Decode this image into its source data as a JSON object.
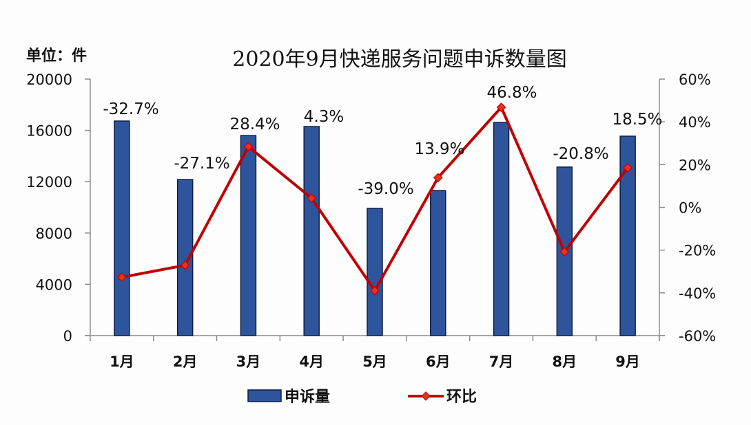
{
  "chart_data": {
    "type": "bar+line",
    "title": "2020年9月快递服务问题申诉数量图",
    "unit_label": "单位：件",
    "categories": [
      "1月",
      "2月",
      "3月",
      "4月",
      "5月",
      "6月",
      "7月",
      "8月",
      "9月"
    ],
    "series": [
      {
        "name": "申诉量",
        "type": "bar",
        "axis": "left",
        "color": "#2E559C",
        "edge_color": "#0E1E45",
        "values": [
          16730,
          12170,
          15600,
          16300,
          9920,
          11310,
          16620,
          13140,
          15550
        ]
      },
      {
        "name": "环比",
        "type": "line",
        "axis": "right",
        "color": "#C00000",
        "marker_color": "#E8321E",
        "values": [
          -32.7,
          -27.1,
          28.4,
          4.3,
          -39.0,
          13.9,
          46.8,
          -20.8,
          18.5
        ],
        "labels": [
          "-32.7%",
          "-27.1%",
          "28.4%",
          "4.3%",
          "-39.0%",
          "13.9%",
          "46.8%",
          "-20.8%",
          "18.5%"
        ]
      }
    ],
    "y_left": {
      "ylim": [
        0,
        20000
      ],
      "ticks": [
        "0",
        "4000",
        "8000",
        "12000",
        "16000",
        "20000"
      ]
    },
    "y_right": {
      "ylim": [
        -60,
        60
      ],
      "ticks": [
        "-60%",
        "-40%",
        "-20%",
        "0%",
        "20%",
        "40%",
        "60%"
      ]
    },
    "grid": false,
    "legend_position": "bottom",
    "legend": [
      "申诉量",
      "环比"
    ]
  }
}
